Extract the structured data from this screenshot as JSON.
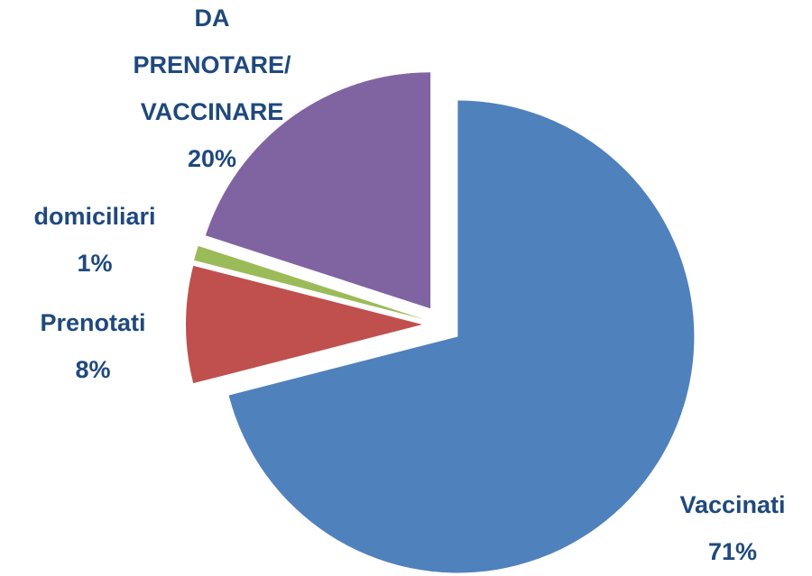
{
  "chart_data": {
    "type": "pie",
    "categories": [
      "Vaccinati",
      "Prenotati",
      "domiciliari",
      "DA PRENOTARE/ VACCINARE"
    ],
    "values": [
      71,
      8,
      1,
      20
    ],
    "value_labels": [
      "71%",
      "8%",
      "1%",
      "20%"
    ],
    "colors": [
      "#4f81bd",
      "#c0504d",
      "#9bbb59",
      "#8064a2"
    ]
  }
}
